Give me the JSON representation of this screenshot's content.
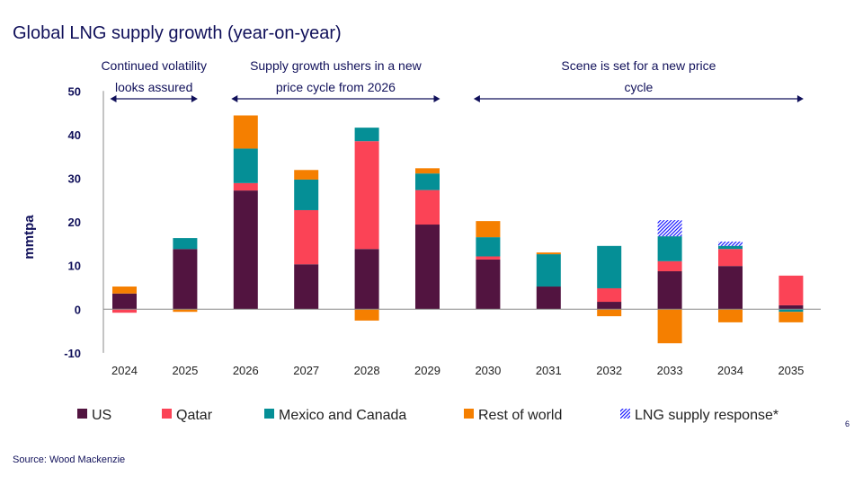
{
  "chart_data": {
    "type": "bar",
    "stacked": true,
    "title": "Global LNG supply growth (year-on-year)",
    "ylabel": "mmtpa",
    "xlabel": "",
    "ylim": [
      -10,
      50
    ],
    "yticks": [
      -10,
      0,
      10,
      20,
      30,
      40,
      50
    ],
    "grid": false,
    "legend": "bottom",
    "categories": [
      "2024",
      "2025",
      "2026",
      "2027",
      "2028",
      "2029",
      "2030",
      "2031",
      "2032",
      "2033",
      "2034",
      "2035"
    ],
    "series": [
      {
        "name": "US",
        "color": "#521440",
        "values": [
          3.6,
          13.8,
          27.2,
          10.3,
          13.8,
          19.4,
          11.4,
          5.2,
          1.7,
          8.7,
          9.9,
          0.9
        ]
      },
      {
        "name": "Qatar",
        "color": "#FB4356",
        "values": [
          -0.8,
          0,
          1.7,
          12.4,
          24.7,
          7.9,
          0.7,
          0,
          3.1,
          2.3,
          3.9,
          6.8
        ]
      },
      {
        "name": "Mexico and Canada",
        "color": "#058F96",
        "values": [
          0,
          2.5,
          7.9,
          7.0,
          3.1,
          3.8,
          4.4,
          7.4,
          9.7,
          5.7,
          0.7,
          -0.6
        ]
      },
      {
        "name": "Rest of world",
        "color": "#F57F00",
        "values": [
          1.6,
          -0.6,
          7.6,
          2.2,
          -2.6,
          1.2,
          3.7,
          0.4,
          -1.6,
          -7.8,
          -3.0,
          -2.4
        ]
      },
      {
        "name": "LNG supply response*",
        "color": "#1a1aff",
        "pattern": "hatch",
        "values": [
          0,
          0,
          0,
          0,
          0,
          0,
          0,
          0,
          0,
          3.7,
          1.0,
          0
        ]
      }
    ],
    "annotations": [
      {
        "lines": [
          "Continued volatility",
          "looks assured"
        ],
        "span": [
          "2024",
          "2025"
        ]
      },
      {
        "lines": [
          "Supply growth ushers in a new",
          "price cycle from 2026"
        ],
        "span": [
          "2026",
          "2029"
        ]
      },
      {
        "lines": [
          "Scene is set for a new price",
          "cycle"
        ],
        "span": [
          "2030",
          "2035"
        ]
      }
    ]
  },
  "source": "Source: Wood Mackenzie",
  "page_number": "6"
}
